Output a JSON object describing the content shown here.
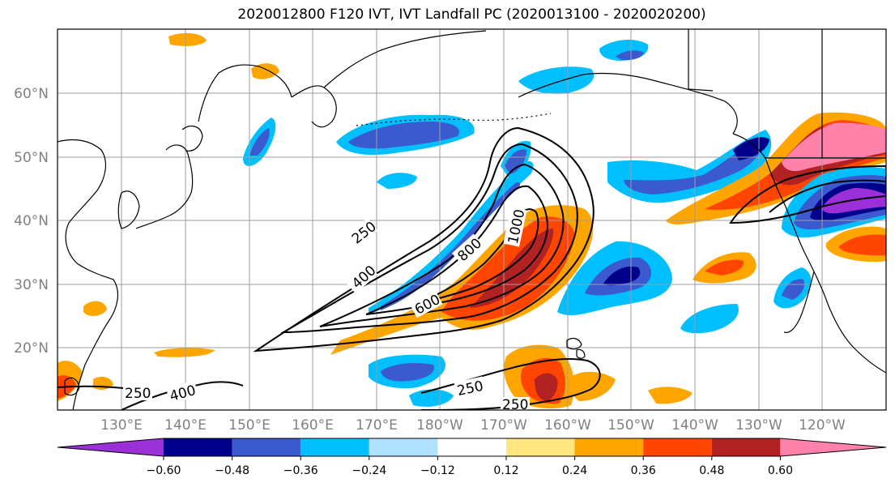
{
  "title": "2020012800 F120 IVT, IVT Landfall PC (2020013100 - 2020020200)",
  "latitude_labels": [
    "60°N",
    "50°N",
    "40°N",
    "30°N",
    "20°N"
  ],
  "longitude_labels": [
    "130°E",
    "140°E",
    "150°E",
    "160°E",
    "170°E",
    "180°W",
    "170°W",
    "160°W",
    "150°W",
    "140°W",
    "130°W",
    "120°W"
  ],
  "contour_labels": [
    "250",
    "400",
    "600",
    "800",
    "1000",
    "250",
    "400",
    "250",
    "250"
  ],
  "colorbar": {
    "tick_labels": [
      "−0.60",
      "−0.48",
      "−0.36",
      "−0.24",
      "−0.12",
      "0.12",
      "0.24",
      "0.36",
      "0.48",
      "0.60"
    ],
    "colors": [
      "#9b30d8",
      "#00008b",
      "#3a5acd",
      "#00bfff",
      "#b0e2ff",
      "#ffffff",
      "#ffe680",
      "#ffa500",
      "#ff4500",
      "#b22222",
      "#ff82ab"
    ]
  },
  "colors": {
    "coast": "#000000",
    "grid": "#9e9e9e",
    "contour": "#000000"
  }
}
